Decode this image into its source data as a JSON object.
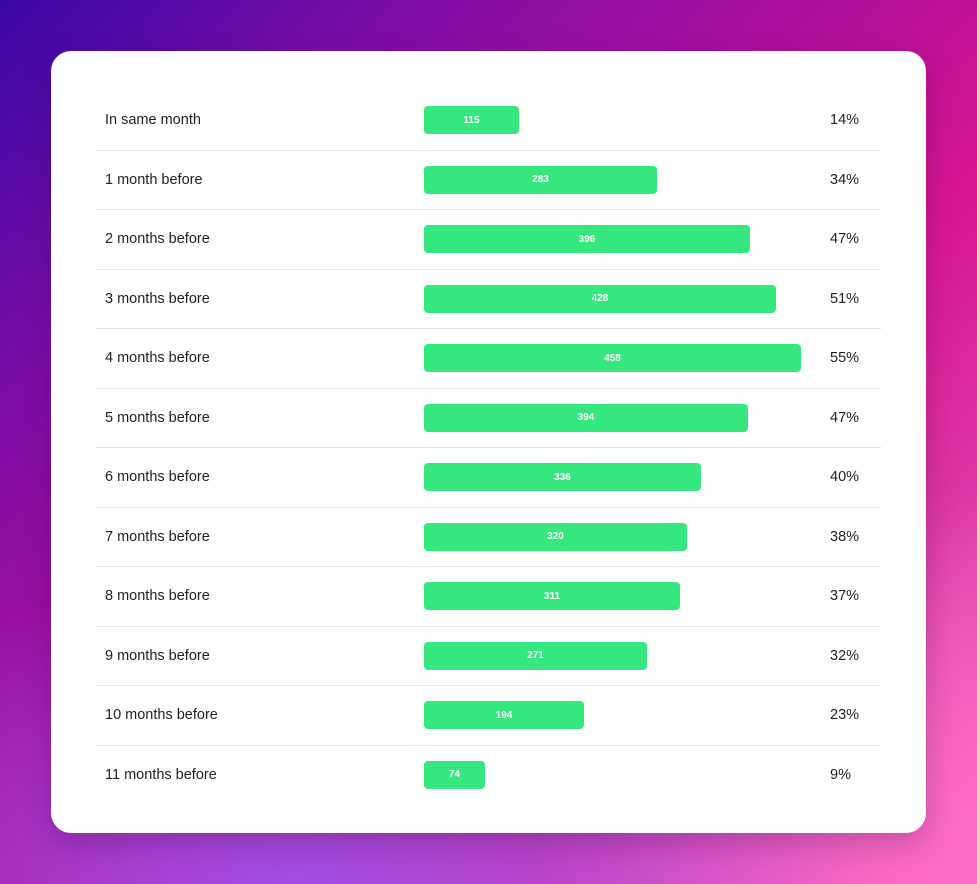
{
  "chart_data": {
    "type": "bar",
    "orientation": "horizontal",
    "bar_color": "#36e67f",
    "xlim": [
      0,
      458
    ],
    "categories": [
      "In same month",
      "1 month before",
      "2 months before",
      "3 months before",
      "4 months before",
      "5 months before",
      "6 months before",
      "7 months before",
      "8 months before",
      "9 months before",
      "10 months before",
      "11 months before"
    ],
    "values": [
      115,
      283,
      396,
      428,
      458,
      394,
      336,
      320,
      311,
      271,
      194,
      74
    ],
    "value_labels": [
      "115",
      "283",
      "396",
      "428",
      "458",
      "394",
      "336",
      "320",
      "311",
      "271",
      "194",
      "74"
    ],
    "percentages": [
      "14%",
      "34%",
      "47%",
      "51%",
      "55%",
      "47%",
      "40%",
      "38%",
      "37%",
      "32%",
      "23%",
      "9%"
    ]
  }
}
